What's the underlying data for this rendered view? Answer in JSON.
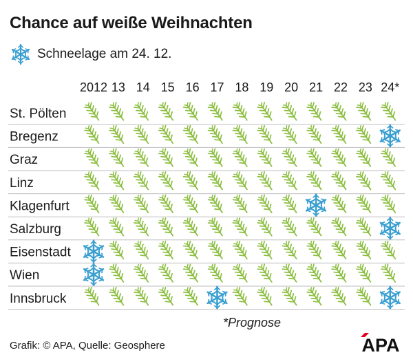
{
  "title": "Chance auf weiße Weihnachten",
  "legend": {
    "icon": "snowflake-icon",
    "label": "Schneelage am 24. 12."
  },
  "chart_data": {
    "type": "table",
    "columns": [
      "2012",
      "13",
      "14",
      "15",
      "16",
      "17",
      "18",
      "19",
      "20",
      "21",
      "22",
      "23",
      "24*"
    ],
    "rows": [
      {
        "city": "St. Pölten",
        "snow": [
          0,
          0,
          0,
          0,
          0,
          0,
          0,
          0,
          0,
          0,
          0,
          0,
          0
        ]
      },
      {
        "city": "Bregenz",
        "snow": [
          0,
          0,
          0,
          0,
          0,
          0,
          0,
          0,
          0,
          0,
          0,
          0,
          1
        ]
      },
      {
        "city": "Graz",
        "snow": [
          0,
          0,
          0,
          0,
          0,
          0,
          0,
          0,
          0,
          0,
          0,
          0,
          0
        ]
      },
      {
        "city": "Linz",
        "snow": [
          0,
          0,
          0,
          0,
          0,
          0,
          0,
          0,
          0,
          0,
          0,
          0,
          0
        ]
      },
      {
        "city": "Klagenfurt",
        "snow": [
          0,
          0,
          0,
          0,
          0,
          0,
          0,
          0,
          0,
          1,
          0,
          0,
          0
        ]
      },
      {
        "city": "Salzburg",
        "snow": [
          0,
          0,
          0,
          0,
          0,
          0,
          0,
          0,
          0,
          0,
          0,
          0,
          1
        ]
      },
      {
        "city": "Eisenstadt",
        "snow": [
          1,
          0,
          0,
          0,
          0,
          0,
          0,
          0,
          0,
          0,
          0,
          0,
          0
        ]
      },
      {
        "city": "Wien",
        "snow": [
          1,
          0,
          0,
          0,
          0,
          0,
          0,
          0,
          0,
          0,
          0,
          0,
          0
        ]
      },
      {
        "city": "Innsbruck",
        "snow": [
          0,
          0,
          0,
          0,
          0,
          1,
          0,
          0,
          0,
          0,
          0,
          0,
          1
        ]
      }
    ],
    "cell_icons": {
      "0": "fir-branch-icon",
      "1": "snowflake-icon"
    }
  },
  "colors": {
    "snow": "#3a9fd0",
    "branch": "#8bbe3f",
    "divider": "#bdbdbd",
    "text": "#1a1a1a",
    "logo_red": "#e2001a"
  },
  "footnote": "*Prognose",
  "source": "Grafik: © APA, Quelle: Geosphere",
  "logo": {
    "text": "APA",
    "icon": "apa-logo"
  }
}
